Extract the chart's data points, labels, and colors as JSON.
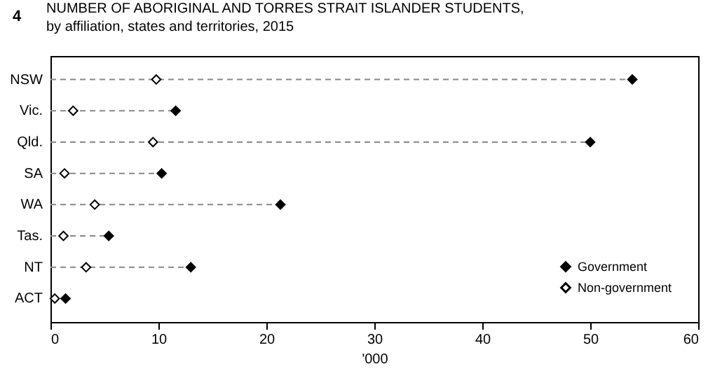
{
  "chart_data": {
    "type": "scatter",
    "title": "NUMBER OF ABORIGINAL AND TORRES STRAIT ISLANDER STUDENTS,",
    "subtitle": "by affiliation, states and territories, 2015",
    "xlabel": "'000",
    "annotations": [
      "4"
    ],
    "categories": [
      "NSW",
      "Vic.",
      "Qld.",
      "SA",
      "WA",
      "Tas.",
      "NT",
      "ACT"
    ],
    "orientation": "horizontal",
    "series": [
      {
        "name": "Government",
        "color": "#000000",
        "values": [
          53.9,
          11.6,
          50.0,
          10.3,
          21.3,
          5.4,
          13.0,
          1.4
        ]
      },
      {
        "name": "Non-government",
        "color": "#ffffff",
        "values": [
          9.8,
          2.1,
          9.5,
          1.3,
          4.1,
          1.2,
          3.3,
          0.4
        ]
      }
    ],
    "xlim": [
      0,
      60
    ],
    "xticks": [
      0,
      10,
      20,
      30,
      40,
      50,
      60
    ],
    "marker": "diamond",
    "legend": "bottom right",
    "grid": "y"
  }
}
